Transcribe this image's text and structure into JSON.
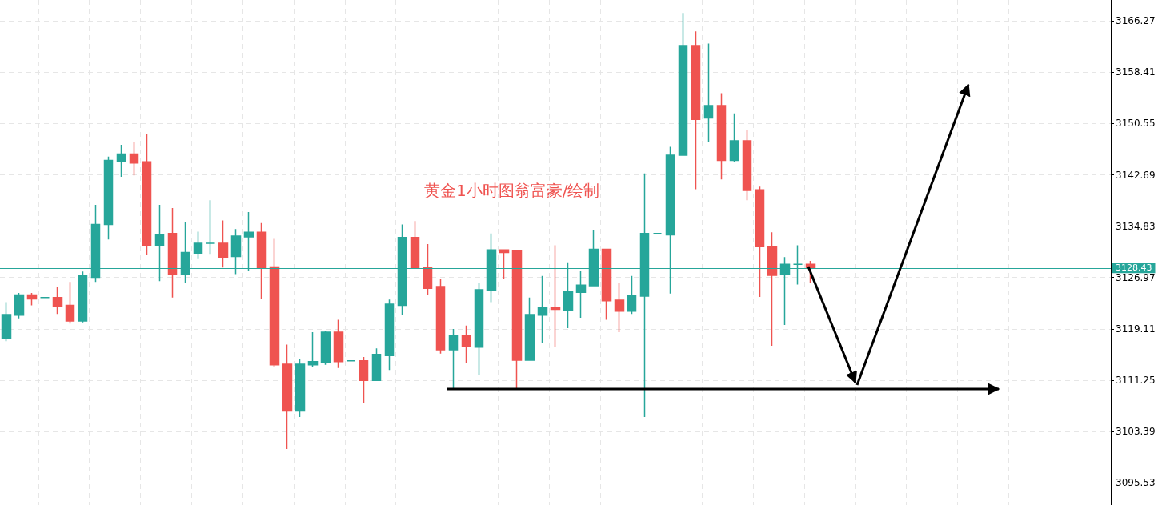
{
  "chart_data": {
    "type": "candlestick",
    "annotations": [
      "黄金1小时图翁富豪/绘制"
    ],
    "categories": [
      null,
      null,
      null,
      null,
      null,
      null,
      null,
      null,
      null,
      null,
      null,
      null,
      null,
      null,
      null,
      null,
      null,
      null,
      null,
      null,
      null,
      null,
      null,
      null,
      null,
      null,
      null,
      null,
      null,
      null,
      null,
      null,
      null,
      null,
      null,
      null,
      null,
      null,
      null,
      null,
      null,
      null,
      null,
      null,
      null,
      null,
      null,
      null,
      null,
      null,
      null,
      null,
      null,
      null,
      null,
      null,
      null,
      null,
      null,
      null,
      null,
      null,
      null,
      null,
      null,
      null,
      null,
      null,
      null,
      null,
      null,
      null,
      null,
      null,
      null,
      null,
      null,
      null,
      null,
      null,
      null,
      null,
      null,
      null,
      null,
      null,
      null
    ],
    "ohlc": [
      [
        3117.7,
        3123.2,
        3117.2,
        3121.3
      ],
      [
        3121.2,
        3124.6,
        3120.7,
        3124.3
      ],
      [
        3124.3,
        3124.6,
        3122.7,
        3123.7
      ],
      [
        3123.9,
        3123.9,
        3123.9,
        3123.9
      ],
      [
        3123.9,
        3125.6,
        3121.4,
        3122.6
      ],
      [
        3122.7,
        3126.3,
        3119.9,
        3120.3
      ],
      [
        3120.3,
        3127.9,
        3120.1,
        3127.2
      ],
      [
        3127.0,
        3138.1,
        3126.3,
        3135.1
      ],
      [
        3135.1,
        3145.5,
        3132.8,
        3144.9
      ],
      [
        3144.8,
        3147.3,
        3142.4,
        3145.9
      ],
      [
        3145.9,
        3147.8,
        3142.6,
        3144.5
      ],
      [
        3144.7,
        3148.9,
        3130.4,
        3131.8
      ],
      [
        3131.8,
        3138.1,
        3126.4,
        3133.5
      ],
      [
        3133.7,
        3137.6,
        3123.9,
        3127.4
      ],
      [
        3127.4,
        3135.5,
        3126.2,
        3130.8
      ],
      [
        3130.7,
        3134.0,
        3129.9,
        3132.2
      ],
      [
        3132.2,
        3138.8,
        3130.6,
        3132.2
      ],
      [
        3132.2,
        3135.7,
        3128.5,
        3130.1
      ],
      [
        3130.2,
        3134.4,
        3127.5,
        3133.3
      ],
      [
        3133.2,
        3137.0,
        3128.0,
        3133.9
      ],
      [
        3133.9,
        3135.3,
        3123.7,
        3128.5
      ],
      [
        3128.6,
        3132.9,
        3113.3,
        3113.6
      ],
      [
        3113.7,
        3116.7,
        3100.7,
        3106.5
      ],
      [
        3106.5,
        3114.5,
        3105.6,
        3113.7
      ],
      [
        3113.6,
        3118.6,
        3113.2,
        3114.1
      ],
      [
        3113.9,
        3118.8,
        3113.6,
        3118.6
      ],
      [
        3118.6,
        3120.5,
        3113.1,
        3114.1
      ],
      [
        3114.2,
        3114.2,
        3114.2,
        3114.2
      ],
      [
        3114.2,
        3114.8,
        3107.7,
        3111.2
      ],
      [
        3111.2,
        3116.1,
        3111.1,
        3115.2
      ],
      [
        3115.0,
        3123.6,
        3112.8,
        3122.9
      ],
      [
        3122.7,
        3135.1,
        3121.2,
        3133.1
      ],
      [
        3133.1,
        3135.6,
        3128.3,
        3128.4
      ],
      [
        3128.5,
        3132.1,
        3124.3,
        3125.3
      ],
      [
        3125.6,
        3126.7,
        3115.3,
        3115.9
      ],
      [
        3115.9,
        3119.1,
        3110.0,
        3118.0
      ],
      [
        3118.0,
        3119.6,
        3113.8,
        3116.4
      ],
      [
        3116.3,
        3126.1,
        3112.0,
        3125.1
      ],
      [
        3125.0,
        3133.7,
        3123.2,
        3131.2
      ],
      [
        3131.2,
        3131.3,
        3126.8,
        3130.8
      ],
      [
        3131.0,
        3131.2,
        3110.0,
        3114.3
      ],
      [
        3114.3,
        3123.9,
        3114.2,
        3121.3
      ],
      [
        3121.2,
        3127.2,
        3116.9,
        3122.3
      ],
      [
        3122.4,
        3131.9,
        3116.4,
        3122.1
      ],
      [
        3122.0,
        3129.3,
        3119.2,
        3124.8
      ],
      [
        3124.7,
        3128.0,
        3120.8,
        3125.8
      ],
      [
        3125.7,
        3134.2,
        3125.7,
        3131.3
      ],
      [
        3131.3,
        3131.3,
        3120.5,
        3123.4
      ],
      [
        3123.5,
        3126.2,
        3118.6,
        3121.8
      ],
      [
        3121.8,
        3127.2,
        3121.4,
        3124.2
      ],
      [
        3124.1,
        3142.9,
        3105.6,
        3133.7
      ],
      [
        3133.7,
        3133.7,
        3133.7,
        3133.7
      ],
      [
        3133.5,
        3147.0,
        3124.5,
        3145.7
      ],
      [
        3145.7,
        3167.5,
        3145.7,
        3162.5
      ],
      [
        3162.5,
        3164.7,
        3140.5,
        3151.2
      ],
      [
        3151.4,
        3162.8,
        3147.8,
        3153.3
      ],
      [
        3153.3,
        3155.2,
        3142.0,
        3144.9
      ],
      [
        3144.9,
        3152.1,
        3144.6,
        3147.9
      ],
      [
        3147.9,
        3149.5,
        3138.8,
        3140.3
      ],
      [
        3140.4,
        3140.9,
        3124.0,
        3131.7
      ],
      [
        3131.7,
        3133.9,
        3116.5,
        3127.3
      ],
      [
        3127.4,
        3130.1,
        3119.7,
        3129.0
      ],
      [
        3129.0,
        3131.9,
        3125.9,
        3129.0
      ],
      [
        3129.0,
        3129.5,
        3126.2,
        3128.4
      ],
      null,
      null,
      null,
      null,
      null,
      null,
      null,
      null,
      null,
      null,
      null,
      null,
      null,
      null,
      null,
      null,
      null,
      null,
      null,
      null,
      null,
      null,
      null
    ],
    "colors": [
      "#26a69a",
      "#26a69a",
      "#ef5350",
      "#26a69a",
      "#ef5350",
      "#ef5350",
      "#26a69a",
      "#26a69a",
      "#26a69a",
      "#26a69a",
      "#ef5350",
      "#ef5350",
      "#26a69a",
      "#ef5350",
      "#26a69a",
      "#26a69a",
      "#26a69a",
      "#ef5350",
      "#26a69a",
      "#26a69a",
      "#ef5350",
      "#ef5350",
      "#ef5350",
      "#26a69a",
      "#26a69a",
      "#26a69a",
      "#ef5350",
      "#26a69a",
      "#ef5350",
      "#26a69a",
      "#26a69a",
      "#26a69a",
      "#ef5350",
      "#ef5350",
      "#ef5350",
      "#26a69a",
      "#ef5350",
      "#26a69a",
      "#26a69a",
      "#ef5350",
      "#ef5350",
      "#26a69a",
      "#26a69a",
      "#ef5350",
      "#26a69a",
      "#26a69a",
      "#26a69a",
      "#ef5350",
      "#ef5350",
      "#26a69a",
      "#26a69a",
      "#26a69a",
      "#26a69a",
      "#26a69a",
      "#ef5350",
      "#26a69a",
      "#ef5350",
      "#26a69a",
      "#ef5350",
      "#ef5350",
      "#ef5350",
      "#26a69a",
      "#26a69a",
      "#ef5350",
      null,
      null,
      null,
      null,
      null,
      null,
      null,
      null,
      null,
      null,
      null,
      null,
      null,
      null,
      null,
      null,
      null,
      null,
      null,
      null,
      null,
      null,
      null
    ],
    "ylim": [
      3092.1,
      3169.5
    ],
    "yticks": [
      3095.53,
      3103.39,
      3111.25,
      3119.11,
      3126.97,
      3134.83,
      3142.69,
      3150.55,
      3158.41,
      3166.27
    ],
    "ref_lines": [
      {
        "axis": "y",
        "value": 3128.43,
        "label": "3128.43",
        "color": "#26a69a"
      }
    ],
    "grid": true,
    "tick_labels": "y"
  }
}
